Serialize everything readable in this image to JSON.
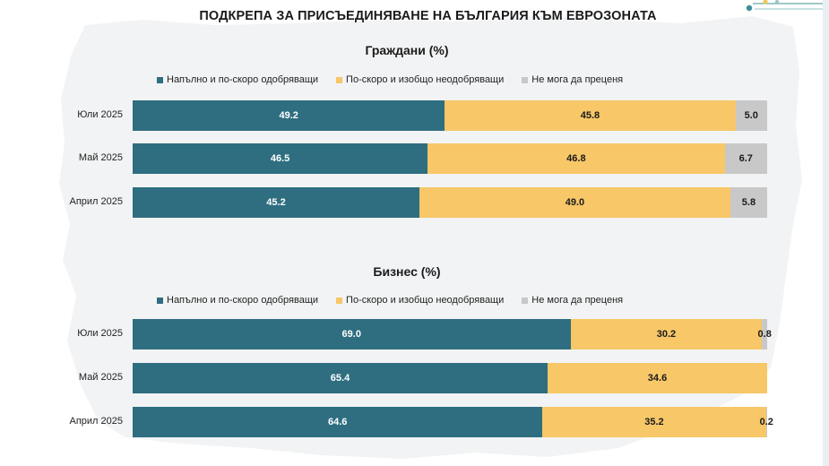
{
  "title": "ПОДКРЕПА ЗА ПРИСЪЕДИНЯВАНЕ НА БЪЛГАРИЯ КЪМ ЕВРОЗОНАТА",
  "colors": {
    "agree": "#2e6e80",
    "disagree": "#f7c768",
    "unsure": "#c8c8c8",
    "map_background": "#f2f3f4"
  },
  "legend": {
    "agree": "Напълно и по-скоро одобряващи",
    "disagree": "По-скоро и изобщо неодобряващи",
    "unsure": "Не мога да преценя"
  },
  "chart_data": [
    {
      "type": "bar",
      "orientation": "horizontal-stacked-100",
      "title": "Граждани (%)",
      "categories": [
        "Юли 2025",
        "Май 2025",
        "Април 2025"
      ],
      "series": [
        {
          "name": "Напълно и по-скоро одобряващи",
          "values": [
            49.2,
            46.5,
            45.2
          ],
          "labels": [
            "49.2",
            "46.5",
            "45.2"
          ]
        },
        {
          "name": "По-скоро и изобщо неодобряващи",
          "values": [
            45.8,
            46.8,
            49.0
          ],
          "labels": [
            "45.8",
            "46.8",
            "49.0"
          ]
        },
        {
          "name": "Не мога да преценя",
          "values": [
            5.0,
            6.7,
            5.8
          ],
          "labels": [
            "5.0",
            "6.7",
            "5.8"
          ]
        }
      ],
      "legend_position": "top",
      "grid": false
    },
    {
      "type": "bar",
      "orientation": "horizontal-stacked-100",
      "title": "Бизнес (%)",
      "categories": [
        "Юли 2025",
        "Май 2025",
        "Април 2025"
      ],
      "series": [
        {
          "name": "Напълно и по-скоро одобряващи",
          "values": [
            69.0,
            65.4,
            64.6
          ],
          "labels": [
            "69.0",
            "65.4",
            "64.6"
          ]
        },
        {
          "name": "По-скоро и изобщо неодобряващи",
          "values": [
            30.2,
            34.6,
            35.2
          ],
          "labels": [
            "30.2",
            "34.6",
            "35.2"
          ]
        },
        {
          "name": "Не мога да преценя",
          "values": [
            0.8,
            0.0,
            0.2
          ],
          "labels": [
            "0.8",
            "",
            "0.2"
          ]
        }
      ],
      "legend_position": "top",
      "grid": false
    }
  ]
}
